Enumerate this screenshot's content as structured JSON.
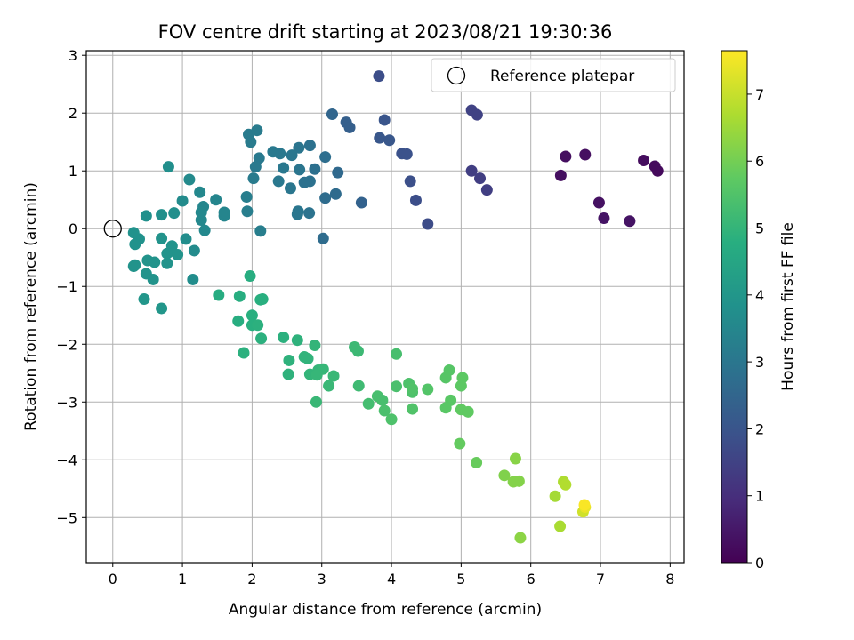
{
  "chart_data": {
    "type": "scatter",
    "title": "FOV centre drift starting at 2023/08/21 19:30:36",
    "xlabel": "Angular distance from reference (arcmin)",
    "ylabel": "Rotation from reference (arcmin)",
    "xlim": [
      -0.38,
      8.2
    ],
    "ylim": [
      -5.78,
      3.08
    ],
    "xticks": [
      0,
      1,
      2,
      3,
      4,
      5,
      6,
      7,
      8
    ],
    "yticks": [
      3,
      2,
      1,
      0,
      -1,
      -2,
      -3,
      -4,
      -5
    ],
    "ytick_labels": [
      "3",
      "2",
      "1",
      "0",
      "−1",
      "−2",
      "−3",
      "−4",
      "−5"
    ],
    "grid": true,
    "colormap": "viridis",
    "colorbar": {
      "label": "Hours from first FF file",
      "range": [
        0,
        7.65
      ],
      "ticks": [
        0,
        1,
        2,
        3,
        4,
        5,
        6,
        7
      ]
    },
    "legend": {
      "position": "top-right",
      "entries": [
        "Reference platepar"
      ]
    },
    "reference": {
      "x": 0,
      "y": 0
    },
    "series": [
      {
        "points": [
          [
            6.43,
            0.92,
            0.3
          ],
          [
            6.5,
            1.25,
            0.3
          ],
          [
            6.78,
            1.28,
            0.3
          ],
          [
            6.98,
            0.45,
            0.35
          ],
          [
            7.05,
            0.18,
            0.4
          ],
          [
            7.42,
            0.13,
            0.4
          ],
          [
            7.62,
            1.18,
            0.25
          ],
          [
            7.78,
            1.08,
            0.2
          ],
          [
            7.82,
            1.0,
            0.2
          ],
          [
            3.82,
            2.64,
            1.8
          ],
          [
            5.15,
            2.05,
            1.5
          ],
          [
            5.23,
            1.97,
            1.5
          ],
          [
            5.15,
            1.0,
            1.4
          ],
          [
            5.27,
            0.87,
            1.4
          ],
          [
            5.37,
            0.67,
            1.4
          ],
          [
            4.52,
            0.08,
            1.75
          ],
          [
            4.35,
            0.49,
            1.8
          ],
          [
            4.27,
            0.82,
            1.85
          ],
          [
            4.15,
            1.3,
            1.9
          ],
          [
            4.22,
            1.29,
            1.9
          ],
          [
            3.9,
            1.88,
            2.0
          ],
          [
            3.83,
            1.57,
            2.05
          ],
          [
            3.97,
            1.53,
            2.05
          ],
          [
            3.35,
            1.84,
            2.3
          ],
          [
            3.4,
            1.75,
            2.3
          ],
          [
            3.15,
            1.98,
            2.5
          ],
          [
            3.57,
            0.45,
            2.4
          ],
          [
            3.23,
            0.97,
            2.6
          ],
          [
            3.2,
            0.6,
            2.65
          ],
          [
            3.05,
            0.53,
            2.7
          ],
          [
            3.02,
            -0.17,
            2.7
          ],
          [
            3.05,
            1.24,
            2.75
          ],
          [
            2.9,
            1.03,
            2.8
          ],
          [
            2.83,
            1.44,
            2.85
          ],
          [
            2.83,
            0.82,
            2.85
          ],
          [
            2.75,
            0.8,
            2.85
          ],
          [
            2.82,
            0.27,
            2.9
          ],
          [
            2.67,
            1.4,
            2.95
          ],
          [
            2.68,
            1.02,
            2.95
          ],
          [
            2.65,
            0.25,
            3.0
          ],
          [
            2.66,
            0.3,
            3.0
          ],
          [
            2.55,
            0.7,
            3.0
          ],
          [
            2.57,
            1.27,
            3.0
          ],
          [
            2.38,
            0.82,
            3.05
          ],
          [
            2.4,
            1.3,
            3.05
          ],
          [
            2.45,
            1.05,
            3.05
          ],
          [
            2.3,
            1.33,
            3.1
          ],
          [
            2.1,
            1.22,
            3.1
          ],
          [
            2.05,
            1.07,
            3.1
          ],
          [
            2.02,
            0.87,
            3.15
          ],
          [
            1.95,
            1.63,
            3.15
          ],
          [
            1.98,
            1.5,
            3.15
          ],
          [
            2.07,
            1.7,
            3.15
          ],
          [
            1.93,
            0.3,
            3.25
          ],
          [
            1.92,
            0.55,
            3.25
          ],
          [
            2.12,
            -0.04,
            3.25
          ],
          [
            1.6,
            0.22,
            3.45
          ],
          [
            1.6,
            0.28,
            3.45
          ],
          [
            1.48,
            0.5,
            3.45
          ],
          [
            1.27,
            0.15,
            3.55
          ],
          [
            1.25,
            0.63,
            3.55
          ],
          [
            1.3,
            0.38,
            3.5
          ],
          [
            1.32,
            -0.03,
            3.55
          ],
          [
            1.27,
            0.28,
            3.55
          ],
          [
            1.1,
            0.85,
            3.6
          ],
          [
            1.0,
            0.48,
            3.65
          ],
          [
            1.17,
            -0.38,
            3.65
          ],
          [
            1.15,
            -0.88,
            3.7
          ],
          [
            1.05,
            -0.18,
            3.7
          ],
          [
            0.88,
            0.27,
            3.75
          ],
          [
            0.8,
            1.07,
            3.75
          ],
          [
            0.7,
            0.24,
            3.8
          ],
          [
            0.48,
            0.22,
            3.8
          ],
          [
            0.38,
            -0.18,
            3.85
          ],
          [
            0.32,
            -0.27,
            3.85
          ],
          [
            0.3,
            -0.07,
            3.85
          ],
          [
            0.3,
            -0.65,
            3.9
          ],
          [
            0.32,
            -0.63,
            3.9
          ],
          [
            0.5,
            -0.55,
            3.9
          ],
          [
            0.48,
            -0.78,
            3.9
          ],
          [
            0.58,
            -0.88,
            3.9
          ],
          [
            0.6,
            -0.58,
            3.9
          ],
          [
            0.7,
            -0.17,
            3.9
          ],
          [
            0.78,
            -0.43,
            3.9
          ],
          [
            0.78,
            -0.6,
            3.9
          ],
          [
            0.85,
            -0.3,
            3.9
          ],
          [
            0.93,
            -0.45,
            3.9
          ],
          [
            0.45,
            -1.22,
            4.0
          ],
          [
            0.7,
            -1.38,
            4.0
          ],
          [
            1.52,
            -1.15,
            4.7
          ],
          [
            1.8,
            -1.6,
            4.75
          ],
          [
            1.82,
            -1.17,
            4.75
          ],
          [
            1.97,
            -0.82,
            4.75
          ],
          [
            2.12,
            -1.23,
            4.8
          ],
          [
            2.15,
            -1.22,
            4.8
          ],
          [
            2.0,
            -1.5,
            4.8
          ],
          [
            2.0,
            -1.67,
            4.8
          ],
          [
            2.08,
            -1.67,
            4.85
          ],
          [
            1.88,
            -2.15,
            4.85
          ],
          [
            2.13,
            -1.9,
            4.85
          ],
          [
            2.45,
            -1.88,
            4.85
          ],
          [
            2.65,
            -1.93,
            4.9
          ],
          [
            2.53,
            -2.28,
            4.9
          ],
          [
            2.52,
            -2.52,
            4.9
          ],
          [
            2.75,
            -2.22,
            4.95
          ],
          [
            2.8,
            -2.25,
            4.95
          ],
          [
            2.83,
            -2.52,
            5.0
          ],
          [
            2.9,
            -2.02,
            5.0
          ],
          [
            2.95,
            -2.45,
            5.0
          ],
          [
            3.02,
            -2.43,
            5.05
          ],
          [
            2.93,
            -2.53,
            5.05
          ],
          [
            2.92,
            -3.0,
            5.1
          ],
          [
            3.1,
            -2.72,
            5.1
          ],
          [
            3.17,
            -2.55,
            5.1
          ],
          [
            3.47,
            -2.05,
            5.15
          ],
          [
            3.52,
            -2.12,
            5.15
          ],
          [
            3.53,
            -2.72,
            5.2
          ],
          [
            3.67,
            -3.03,
            5.3
          ],
          [
            3.8,
            -2.9,
            5.35
          ],
          [
            3.87,
            -2.97,
            5.35
          ],
          [
            3.9,
            -3.15,
            5.4
          ],
          [
            4.0,
            -3.3,
            5.45
          ],
          [
            4.07,
            -2.17,
            5.35
          ],
          [
            4.07,
            -2.73,
            5.4
          ],
          [
            4.25,
            -2.68,
            5.45
          ],
          [
            4.3,
            -2.83,
            5.45
          ],
          [
            4.3,
            -3.12,
            5.5
          ],
          [
            4.3,
            -2.77,
            5.5
          ],
          [
            4.52,
            -2.78,
            5.55
          ],
          [
            4.78,
            -2.58,
            5.6
          ],
          [
            4.83,
            -2.45,
            5.6
          ],
          [
            4.85,
            -2.97,
            5.65
          ],
          [
            4.78,
            -3.1,
            5.65
          ],
          [
            5.02,
            -2.58,
            5.7
          ],
          [
            5.0,
            -2.72,
            5.7
          ],
          [
            5.0,
            -3.13,
            5.75
          ],
          [
            5.1,
            -3.17,
            5.75
          ],
          [
            4.98,
            -3.72,
            5.8
          ],
          [
            5.22,
            -4.05,
            5.85
          ],
          [
            5.62,
            -4.27,
            6.15
          ],
          [
            5.75,
            -4.38,
            6.2
          ],
          [
            5.83,
            -4.37,
            6.2
          ],
          [
            5.78,
            -3.98,
            6.25
          ],
          [
            5.85,
            -5.35,
            6.3
          ],
          [
            6.35,
            -4.63,
            6.6
          ],
          [
            6.42,
            -5.15,
            6.65
          ],
          [
            6.47,
            -4.38,
            6.7
          ],
          [
            6.5,
            -4.43,
            6.75
          ],
          [
            6.75,
            -4.9,
            7.1
          ],
          [
            6.78,
            -4.82,
            7.4
          ],
          [
            6.77,
            -4.78,
            7.6
          ]
        ]
      }
    ]
  }
}
